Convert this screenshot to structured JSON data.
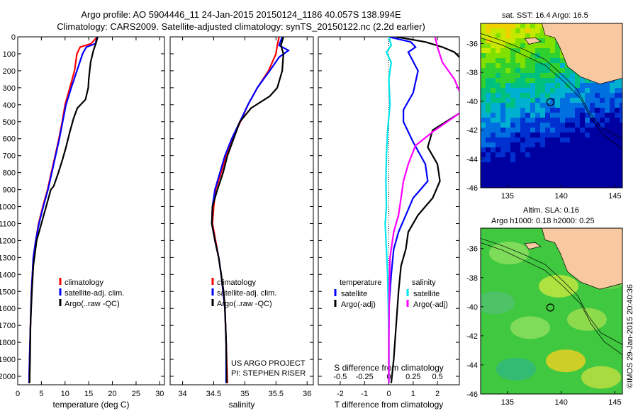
{
  "header": {
    "line1": "Argo profile: AO 5904446_11 24-Jan-2015 20150124_1186 40.057S 138.994E",
    "line2": "Climatology: CARS2009. Satellite-adjusted climatology: synTS_20150122.nc (2.2d earlier)"
  },
  "colors": {
    "climatology": "#ff0000",
    "satellite": "#0000ff",
    "argo": "#000000",
    "s_satellite": "#00e5ee",
    "s_argo": "#ff00ff",
    "land": "#f8c8a0"
  },
  "chart_data": [
    {
      "type": "line",
      "xlabel": "temperature (deg C)",
      "xlim": [
        0,
        31
      ],
      "xticks": [
        0,
        5,
        10,
        15,
        20,
        25,
        30
      ],
      "ylim": [
        2050,
        0
      ],
      "yticks": [
        0,
        100,
        200,
        300,
        400,
        500,
        600,
        700,
        800,
        900,
        1000,
        1100,
        1200,
        1300,
        1400,
        1500,
        1600,
        1700,
        1800,
        1900,
        2000
      ],
      "legend": [
        "climatology",
        "satellite-adj. clim.",
        "Argo(..raw -QC)"
      ],
      "series": [
        {
          "name": "climatology",
          "color": "#ff0000",
          "points": [
            [
              16.8,
              0
            ],
            [
              15.5,
              40
            ],
            [
              13.2,
              60
            ],
            [
              12.5,
              100
            ],
            [
              12,
              200
            ],
            [
              11,
              300
            ],
            [
              10,
              400
            ],
            [
              9.4,
              500
            ],
            [
              8.7,
              600
            ],
            [
              7.9,
              700
            ],
            [
              7.1,
              800
            ],
            [
              6.3,
              900
            ],
            [
              5.3,
              1000
            ],
            [
              4.4,
              1100
            ],
            [
              3.8,
              1200
            ],
            [
              3.3,
              1300
            ],
            [
              2.9,
              1500
            ],
            [
              2.7,
              1700
            ],
            [
              2.5,
              1900
            ],
            [
              2.4,
              2040
            ]
          ]
        },
        {
          "name": "satellite-adj. clim.",
          "color": "#0000ff",
          "points": [
            [
              16.8,
              0
            ],
            [
              16.4,
              40
            ],
            [
              14.5,
              60
            ],
            [
              13.7,
              100
            ],
            [
              12.5,
              200
            ],
            [
              11.3,
              300
            ],
            [
              10.2,
              400
            ],
            [
              9.5,
              500
            ],
            [
              8.8,
              600
            ],
            [
              8,
              700
            ],
            [
              7.2,
              800
            ],
            [
              6.4,
              900
            ],
            [
              5.4,
              1000
            ],
            [
              4.5,
              1100
            ],
            [
              3.8,
              1200
            ],
            [
              3.3,
              1300
            ],
            [
              2.9,
              1500
            ],
            [
              2.7,
              1700
            ],
            [
              2.5,
              1900
            ],
            [
              2.4,
              2040
            ]
          ]
        },
        {
          "name": "Argo(..raw -QC)",
          "color": "#000000",
          "points": [
            [
              16.9,
              0
            ],
            [
              16.5,
              40
            ],
            [
              16,
              80
            ],
            [
              15.4,
              150
            ],
            [
              15,
              250
            ],
            [
              14.9,
              300
            ],
            [
              14.3,
              370
            ],
            [
              12.6,
              420
            ],
            [
              11.8,
              480
            ],
            [
              11,
              560
            ],
            [
              10.2,
              650
            ],
            [
              9.5,
              720
            ],
            [
              8.6,
              800
            ],
            [
              7.6,
              880
            ],
            [
              7,
              900
            ],
            [
              6,
              1000
            ],
            [
              5,
              1100
            ],
            [
              4,
              1200
            ],
            [
              3.3,
              1350
            ],
            [
              3,
              1500
            ],
            [
              2.7,
              1700
            ],
            [
              2.6,
              1900
            ],
            [
              2.5,
              2040
            ]
          ]
        }
      ]
    },
    {
      "type": "line",
      "xlabel": "salinity",
      "xlim": [
        33.8,
        36.1
      ],
      "xticks": [
        34,
        34.5,
        35,
        35.5,
        36
      ],
      "ylim": [
        2050,
        0
      ],
      "legend": [
        "climatology",
        "satellite-adj. clim.",
        "Argo(..raw -QC)"
      ],
      "annotation": [
        "US ARGO PROJECT",
        "PI: STEPHEN RISER"
      ],
      "series": [
        {
          "name": "climatology",
          "color": "#ff0000",
          "points": [
            [
              35.55,
              0
            ],
            [
              35.52,
              50
            ],
            [
              35.5,
              100
            ],
            [
              35.38,
              200
            ],
            [
              35.2,
              300
            ],
            [
              35.05,
              400
            ],
            [
              34.93,
              500
            ],
            [
              34.8,
              600
            ],
            [
              34.7,
              700
            ],
            [
              34.62,
              800
            ],
            [
              34.53,
              900
            ],
            [
              34.5,
              1000
            ],
            [
              34.48,
              1100
            ],
            [
              34.53,
              1200
            ],
            [
              34.58,
              1300
            ],
            [
              34.62,
              1400
            ],
            [
              34.65,
              1500
            ],
            [
              34.68,
              1600
            ],
            [
              34.7,
              1800
            ],
            [
              34.72,
              2040
            ]
          ]
        },
        {
          "name": "satellite-adj. clim.",
          "color": "#0000ff",
          "points": [
            [
              35.6,
              0
            ],
            [
              35.55,
              50
            ],
            [
              35.7,
              80
            ],
            [
              35.55,
              120
            ],
            [
              35.4,
              200
            ],
            [
              35.2,
              300
            ],
            [
              35.05,
              400
            ],
            [
              34.92,
              500
            ],
            [
              34.79,
              600
            ],
            [
              34.68,
              700
            ],
            [
              34.6,
              800
            ],
            [
              34.52,
              900
            ],
            [
              34.48,
              1000
            ],
            [
              34.47,
              1100
            ],
            [
              34.52,
              1200
            ],
            [
              34.58,
              1300
            ],
            [
              34.62,
              1400
            ],
            [
              34.65,
              1500
            ],
            [
              34.68,
              1600
            ],
            [
              34.7,
              1800
            ],
            [
              34.7,
              2040
            ]
          ]
        },
        {
          "name": "Argo(..raw -QC)",
          "color": "#000000",
          "points": [
            [
              35.62,
              0
            ],
            [
              35.58,
              50
            ],
            [
              35.62,
              100
            ],
            [
              35.6,
              200
            ],
            [
              35.52,
              300
            ],
            [
              35.4,
              350
            ],
            [
              35.1,
              420
            ],
            [
              34.92,
              500
            ],
            [
              34.82,
              600
            ],
            [
              34.72,
              700
            ],
            [
              34.65,
              800
            ],
            [
              34.56,
              900
            ],
            [
              34.48,
              1000
            ],
            [
              34.47,
              1100
            ],
            [
              34.52,
              1200
            ],
            [
              34.58,
              1300
            ],
            [
              34.62,
              1400
            ],
            [
              34.66,
              1500
            ],
            [
              34.68,
              1600
            ],
            [
              34.7,
              1800
            ],
            [
              34.71,
              2040
            ]
          ]
        }
      ]
    },
    {
      "type": "line",
      "xlabel": "T difference from climatology",
      "xlabel_top": "S difference from climatology",
      "xlim": [
        -2.9,
        2.9
      ],
      "xticks": [
        -2,
        -1,
        0,
        1,
        2
      ],
      "xticks_top": [
        "-0.5",
        "-0.25",
        "0",
        "0.25",
        "0.5"
      ],
      "ylim": [
        2050,
        0
      ],
      "legend": [
        "temperature",
        "satellite",
        "Argo(-adj)",
        "salinity",
        "satellite",
        "Argo(-adj)"
      ],
      "series": [
        {
          "name": "temperature satellite",
          "color": "#0000ff",
          "points": [
            [
              0,
              0
            ],
            [
              0.9,
              30
            ],
            [
              1.1,
              60
            ],
            [
              0.8,
              90
            ],
            [
              1.2,
              200
            ],
            [
              1.0,
              330
            ],
            [
              0.6,
              430
            ],
            [
              0.6,
              500
            ],
            [
              1.0,
              620
            ],
            [
              1.5,
              750
            ],
            [
              1.6,
              850
            ],
            [
              1.0,
              950
            ],
            [
              0.7,
              1050
            ],
            [
              0.4,
              1150
            ],
            [
              0.2,
              1250
            ],
            [
              0.1,
              1400
            ],
            [
              0,
              1600
            ],
            [
              0,
              2040
            ]
          ]
        },
        {
          "name": "temperature Argo",
          "color": "#000000",
          "points": [
            [
              0.3,
              0
            ],
            [
              1.5,
              30
            ],
            [
              2.2,
              60
            ],
            [
              2.7,
              90
            ],
            [
              2.9,
              120
            ]
          ]
        },
        {
          "name": "temperature Argo",
          "color": "#000000",
          "points": [
            [
              2.9,
              450
            ],
            [
              1.8,
              550
            ],
            [
              1.6,
              650
            ],
            [
              2.0,
              750
            ],
            [
              2.1,
              850
            ],
            [
              1.8,
              950
            ],
            [
              1.2,
              1050
            ],
            [
              0.8,
              1150
            ],
            [
              0.7,
              1250
            ],
            [
              0.5,
              1350
            ],
            [
              0.4,
              1500
            ],
            [
              0.3,
              1700
            ],
            [
              0.2,
              1900
            ],
            [
              0.1,
              2040
            ]
          ]
        },
        {
          "name": "salinity satellite",
          "color": "#00e5ee",
          "points": [
            [
              0,
              0
            ],
            [
              0.1,
              50
            ],
            [
              -0.1,
              90
            ],
            [
              0.1,
              150
            ],
            [
              0,
              250
            ],
            [
              0.05,
              400
            ],
            [
              -0.05,
              550
            ],
            [
              -0.1,
              700
            ],
            [
              -0.12,
              850
            ],
            [
              -0.1,
              1000
            ],
            [
              -0.15,
              1100
            ],
            [
              -0.1,
              1250
            ],
            [
              -0.05,
              1400
            ],
            [
              -0.02,
              1600
            ],
            [
              0,
              1800
            ],
            [
              0,
              2040
            ]
          ]
        },
        {
          "name": "salinity Argo",
          "color": "#ff00ff",
          "points": [
            [
              1.9,
              0
            ],
            [
              2.0,
              60
            ],
            [
              2.2,
              150
            ],
            [
              2.7,
              250
            ],
            [
              2.9,
              320
            ]
          ]
        },
        {
          "name": "salinity Argo",
          "color": "#ff00ff",
          "points": [
            [
              2.9,
              450
            ],
            [
              1.8,
              560
            ],
            [
              1.1,
              640
            ],
            [
              0.8,
              750
            ],
            [
              0.6,
              850
            ],
            [
              0.5,
              950
            ],
            [
              0.4,
              1050
            ],
            [
              0.2,
              1150
            ],
            [
              0.05,
              1300
            ],
            [
              0.02,
              1500
            ],
            [
              0,
              1800
            ],
            [
              0,
              2040
            ]
          ]
        }
      ]
    },
    {
      "type": "heatmap",
      "title": "sat. SST: 16.4 Argo: 16.5",
      "xticks": [
        135,
        140,
        145
      ],
      "yticks": [
        -36,
        -38,
        -40,
        -42,
        -44,
        -46
      ],
      "xlim": [
        132.5,
        145.7
      ],
      "ylim": [
        -46,
        -34.6
      ],
      "argo_position": [
        138.994,
        -40.057
      ]
    },
    {
      "type": "heatmap",
      "title_line1": "Altim. SLA: 0.16",
      "title_line2": "Argo h1000: 0.18 h2000: 0.25",
      "xticks": [
        135,
        140,
        145
      ],
      "yticks": [
        -36,
        -38,
        -40,
        -42,
        -44,
        -46
      ],
      "xlim": [
        132.5,
        145.7
      ],
      "ylim": [
        -46,
        -34.6
      ],
      "argo_position": [
        138.994,
        -40.057
      ]
    }
  ],
  "credit": "©IMOS 29-Jan-2015 20:40:36"
}
